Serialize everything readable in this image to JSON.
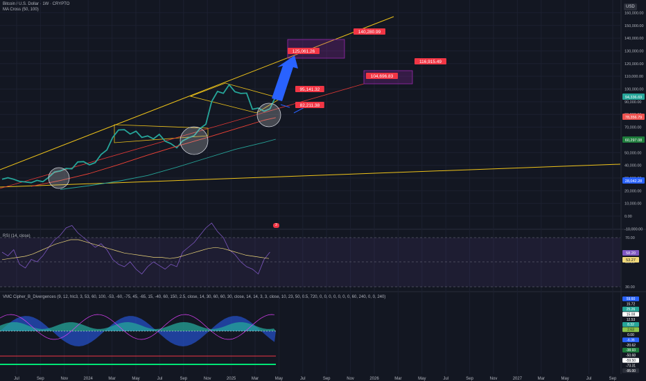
{
  "header": {
    "symbol_title": "Bitcoin / U.S. Dollar · 1W · CRYPTO",
    "ma_legend": "MA Cross (50, 100)",
    "currency": "USD"
  },
  "rsi_pane": {
    "legend": "RSI (14, close)",
    "ticks": [
      "70.00",
      "50.00",
      "30.00"
    ],
    "badges": [
      {
        "text": "58.20",
        "color": "#7e57c2"
      },
      {
        "text": "53.27",
        "color": "#f0d97a"
      }
    ]
  },
  "vmc_pane": {
    "legend": "VMC Cipher_B_Divergences (9, 12, hlc3, 3, 53, 60, 100, -53, -60, -75, 45, -65, 15, -40, 60, 150, 2.5, close, 14, 30, 60, 60, 30, close, 14, 14, 3, 3, close, 10, 23, 50, 0.5, 720, 0, 0, 0, 0, 0, 0, 0, 60, 240, 0, 0, 240)",
    "badges": [
      {
        "text": "59.60",
        "color": "#2962ff"
      },
      {
        "text": "15.72",
        "color": "#131722"
      },
      {
        "text": "25.26",
        "color": "#26a69a"
      },
      {
        "text": "15.08",
        "color": "#ffffff"
      },
      {
        "text": "12.53",
        "color": "#131722"
      },
      {
        "text": "8.32",
        "color": "#26a69a"
      },
      {
        "text": "2.63",
        "color": "#8bc34a"
      },
      {
        "text": "0.00",
        "color": "#131722"
      },
      {
        "text": "-6.36",
        "color": "#2962ff"
      },
      {
        "text": "-20.62",
        "color": "#131722"
      },
      {
        "text": "-38.93",
        "color": "#1e7d3c"
      },
      {
        "text": "-50.68",
        "color": "#131722"
      },
      {
        "text": "-59.50",
        "color": "#ffffff"
      },
      {
        "text": "-73.31",
        "color": "#131722"
      },
      {
        "text": "-95.00",
        "color": "#2a2e39"
      }
    ]
  },
  "event_badge": "3",
  "chart_data": {
    "type": "line",
    "title": "Bitcoin / U.S. Dollar · 1W · CRYPTO",
    "xlabel": "",
    "ylabel": "",
    "y_axis_ticks": [
      "160,000.00",
      "150,000.00",
      "140,000.00",
      "130,000.00",
      "120,000.00",
      "110,000.00",
      "100,000.00",
      "90,000.00",
      "80,000.00",
      "70,000.00",
      "60,000.00",
      "50,000.00",
      "40,000.00",
      "30,000.00",
      "20,000.00",
      "10,000.00",
      "0.00",
      "-10,000.00"
    ],
    "x_axis_ticks": [
      "Jul",
      "Sep",
      "Nov",
      "2024",
      "Mar",
      "May",
      "Jul",
      "Sep",
      "Nov",
      "2025",
      "Mar",
      "May",
      "Jul",
      "Sep",
      "Nov",
      "2026",
      "Mar",
      "May",
      "Jul",
      "Sep",
      "Nov",
      "2027",
      "Mar",
      "May",
      "Jul",
      "Sep"
    ],
    "price_axis_badges": [
      {
        "text": "94,336.69",
        "color": "#26a69a"
      },
      {
        "text": "78,356.79",
        "color": "#ef5350"
      },
      {
        "text": "60,297.08",
        "color": "#1e7d3c"
      },
      {
        "text": "28,042.28",
        "color": "#2962ff"
      }
    ],
    "price_targets": [
      "140,280.99",
      "125,061.26",
      "116,915.49",
      "104,696.83",
      "95,141.32",
      "82,211.38"
    ],
    "series": [
      {
        "color": "#26a69a",
        "values": [
          [
            0,
            29000
          ],
          [
            2,
            30200
          ],
          [
            4,
            29000
          ],
          [
            6,
            27300
          ],
          [
            8,
            26900
          ],
          [
            10,
            26300
          ],
          [
            12,
            28100
          ],
          [
            14,
            27100
          ],
          [
            16,
            30500
          ],
          [
            18,
            34700
          ],
          [
            20,
            35600
          ],
          [
            22,
            37500
          ],
          [
            24,
            37200
          ],
          [
            26,
            42600
          ],
          [
            28,
            42900
          ],
          [
            30,
            40300
          ],
          [
            32,
            42100
          ],
          [
            34,
            48500
          ],
          [
            36,
            52100
          ],
          [
            38,
            61900
          ],
          [
            40,
            67800
          ],
          [
            42,
            68000
          ],
          [
            44,
            64600
          ],
          [
            46,
            66800
          ],
          [
            48,
            61900
          ],
          [
            50,
            63100
          ],
          [
            52,
            60800
          ],
          [
            54,
            64300
          ],
          [
            56,
            59000
          ],
          [
            58,
            57000
          ],
          [
            60,
            53800
          ],
          [
            62,
            59200
          ],
          [
            64,
            61500
          ],
          [
            66,
            63300
          ],
          [
            68,
            69000
          ],
          [
            70,
            72300
          ],
          [
            72,
            90200
          ],
          [
            74,
            98100
          ],
          [
            76,
            96600
          ],
          [
            78,
            103300
          ],
          [
            80,
            97800
          ],
          [
            82,
            96500
          ],
          [
            84,
            96800
          ],
          [
            86,
            84100
          ],
          [
            88,
            85000
          ],
          [
            90,
            82500
          ],
          [
            92,
            84400
          ],
          [
            94,
            94300
          ]
        ]
      },
      {
        "color": "#f44336",
        "values": [
          [
            10,
            23500
          ],
          [
            20,
            28000
          ],
          [
            30,
            33500
          ],
          [
            40,
            40500
          ],
          [
            50,
            48000
          ],
          [
            60,
            55000
          ],
          [
            70,
            61500
          ],
          [
            80,
            68500
          ],
          [
            90,
            75500
          ],
          [
            94,
            77500
          ]
        ]
      },
      {
        "color": "#26a69a",
        "values": [
          [
            20,
            21000
          ],
          [
            30,
            24000
          ],
          [
            40,
            27500
          ],
          [
            50,
            32000
          ],
          [
            60,
            38500
          ],
          [
            70,
            45500
          ],
          [
            80,
            52500
          ],
          [
            90,
            58000
          ],
          [
            94,
            60500
          ]
        ]
      }
    ]
  }
}
